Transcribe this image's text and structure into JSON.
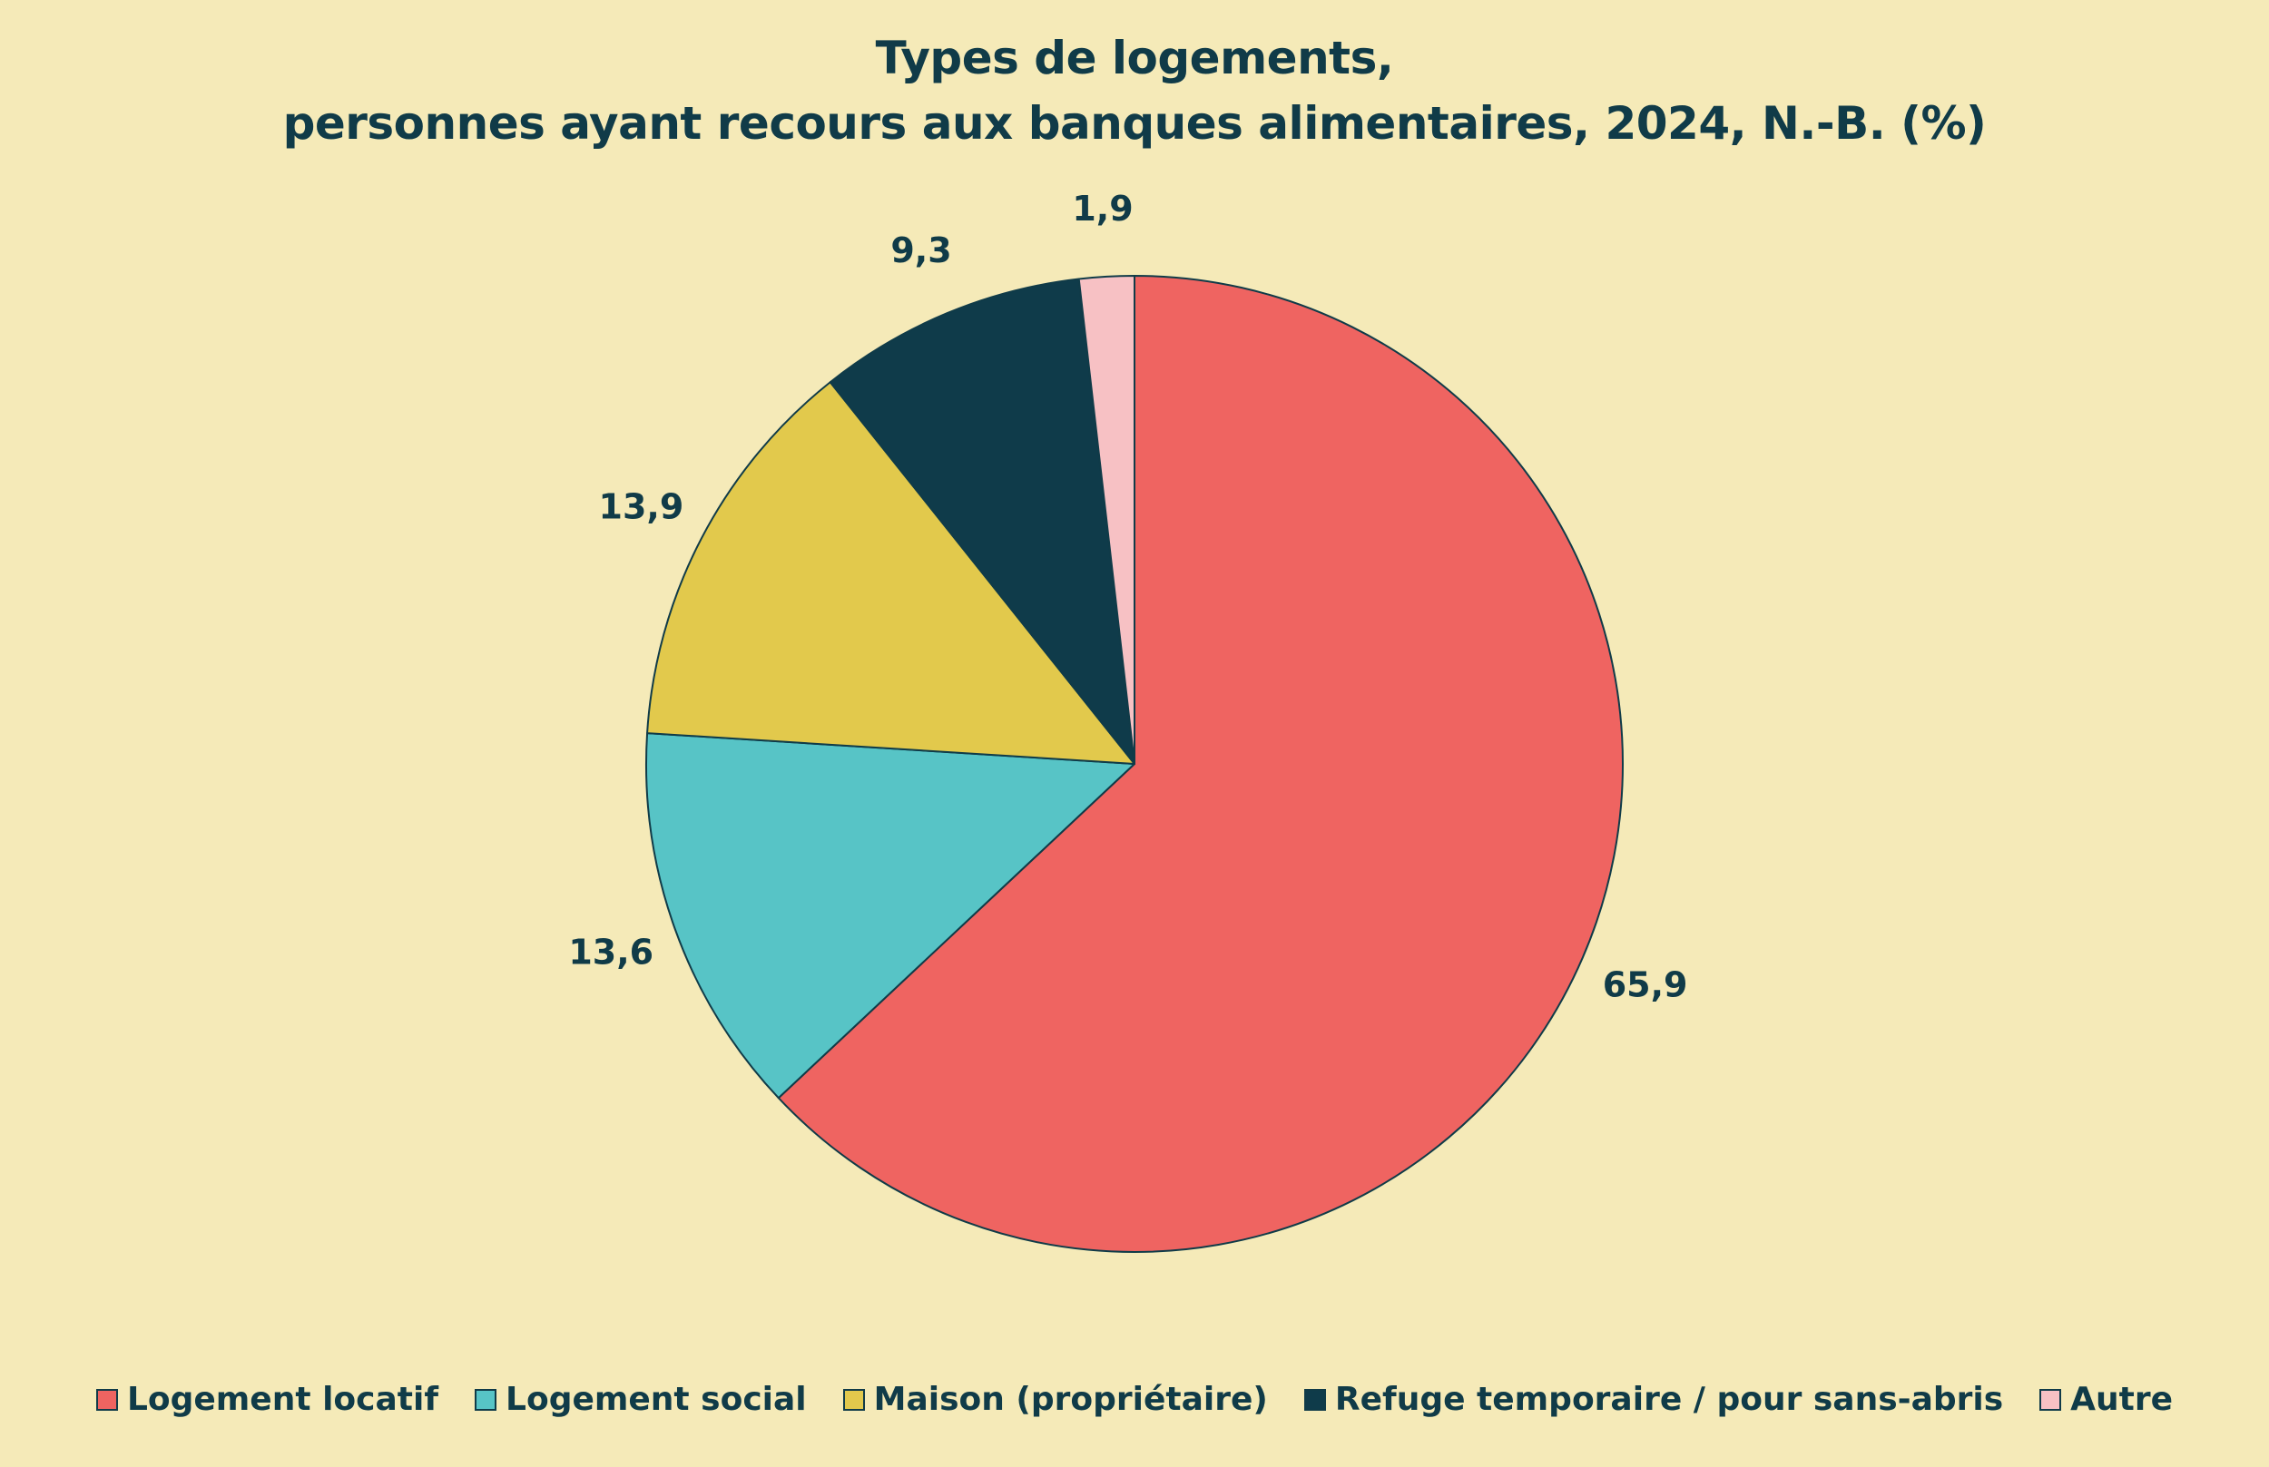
{
  "chart_data": {
    "type": "pie",
    "title_line1": "Types de logements,",
    "title_line2": "personnes ayant recours aux banques alimentaires, 2024, N.-B. (%)",
    "unit": "%",
    "categories": [
      "Logement locatif",
      "Logement social",
      "Maison (propriétaire)",
      "Refuge temporaire / pour sans-abris",
      "Autre"
    ],
    "values": [
      65.9,
      13.6,
      13.9,
      9.3,
      1.9
    ],
    "data_labels": [
      "65,9",
      "13,6",
      "13,9",
      "9,3",
      "1,9"
    ],
    "colors": [
      "#ef6461",
      "#57c4c6",
      "#e2c94c",
      "#0f3b4a",
      "#f7c1c4"
    ],
    "legend_position": "bottom",
    "start_angle": "top",
    "direction": "clockwise"
  }
}
